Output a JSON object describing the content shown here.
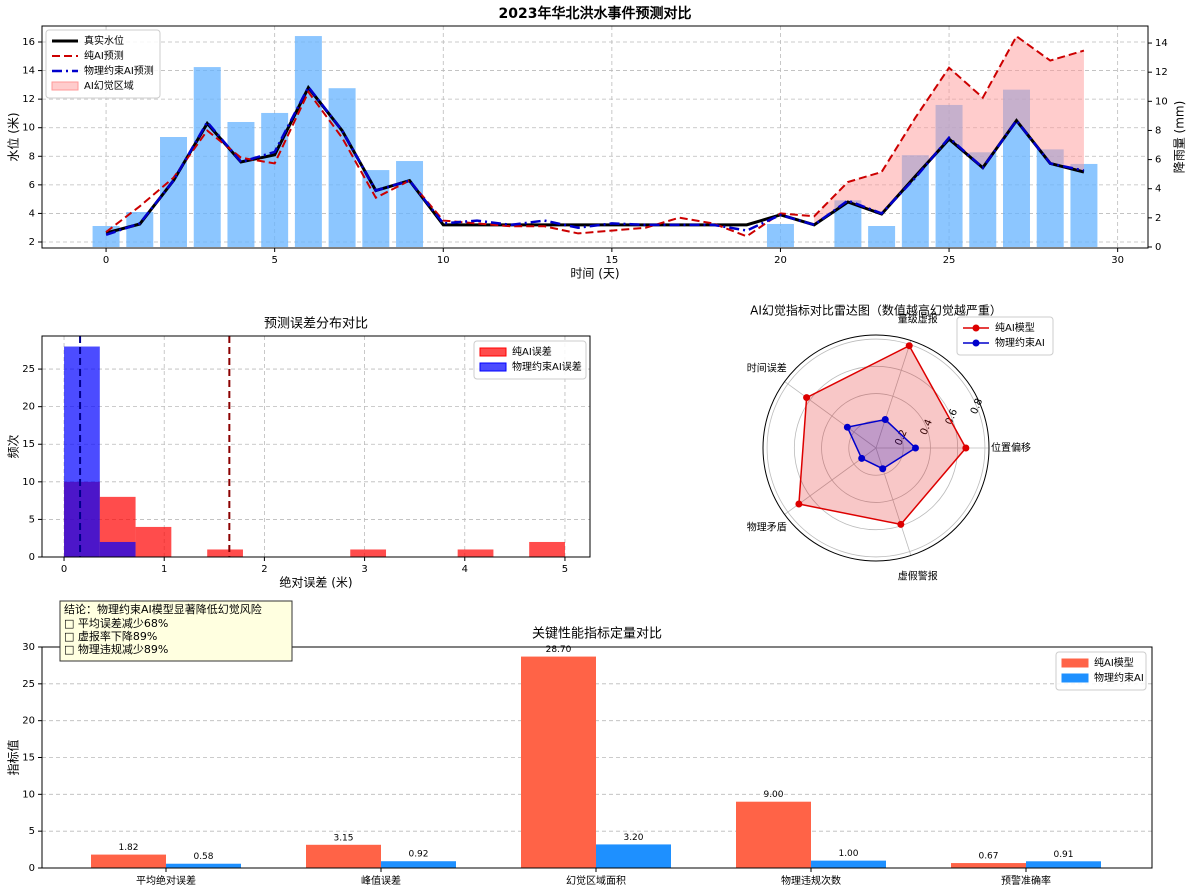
{
  "chart_data": [
    {
      "type": "combo",
      "title": "2023年华北洪水事件预测对比",
      "xlabel": "时间 (天)",
      "ylabel": "水位 (米)",
      "y2label": "降雨量 (mm)",
      "x": [
        0,
        1,
        2,
        3,
        4,
        5,
        6,
        7,
        8,
        9,
        10,
        11,
        12,
        13,
        14,
        15,
        16,
        17,
        18,
        19,
        20,
        21,
        22,
        23,
        24,
        25,
        26,
        27,
        28,
        29
      ],
      "series": [
        {
          "type": "bar",
          "axis": "y2",
          "color": "#66b3ff",
          "values": [
            1.44,
            2.4,
            7.55,
            12.35,
            8.58,
            9.2,
            14.48,
            10.9,
            5.28,
            5.9,
            0,
            0,
            0,
            0,
            0,
            0,
            0,
            0,
            0,
            0,
            1.58,
            0,
            3.2,
            1.44,
            6.3,
            9.75,
            6.5,
            10.8,
            6.7,
            5.7
          ]
        },
        {
          "type": "line",
          "name": "真实水位",
          "color": "#000000",
          "dash": "solid",
          "width": 3,
          "values": [
            2.63,
            3.26,
            6.3,
            10.3,
            7.6,
            8.1,
            12.8,
            9.8,
            5.6,
            6.3,
            3.2,
            3.2,
            3.2,
            3.2,
            3.2,
            3.2,
            3.2,
            3.2,
            3.2,
            3.2,
            3.9,
            3.2,
            4.8,
            3.96,
            6.6,
            9.2,
            7.2,
            10.5,
            7.5,
            6.9
          ]
        },
        {
          "type": "line",
          "name": "纯AI预测",
          "color": "#cc0000",
          "dash": "dashed",
          "width": 2,
          "values": [
            2.7,
            4.5,
            6.5,
            9.8,
            7.9,
            7.5,
            12.5,
            9.3,
            5.1,
            6.3,
            3.5,
            3.3,
            3.1,
            3.1,
            2.6,
            2.8,
            3.0,
            3.7,
            3.3,
            2.4,
            4.0,
            3.8,
            6.2,
            6.9,
            10.7,
            14.2,
            12.1,
            16.4,
            14.7,
            15.4
          ]
        },
        {
          "type": "line",
          "name": "物理约束AI预测",
          "color": "#0000cc",
          "dash": "dashdot",
          "width": 2.5,
          "values": [
            2.5,
            3.3,
            6.3,
            10.4,
            7.6,
            8.3,
            12.85,
            9.8,
            5.6,
            6.3,
            3.3,
            3.5,
            3.2,
            3.5,
            3.0,
            3.3,
            3.2,
            3.2,
            3.2,
            2.8,
            3.9,
            3.2,
            4.9,
            4.0,
            6.5,
            9.3,
            7.2,
            10.5,
            7.5,
            7.0
          ]
        }
      ],
      "fill": {
        "name": "AI幻觉区域",
        "color": "#ff9999",
        "from": 21,
        "to": 29
      },
      "xlim": [
        -1.9,
        30.9
      ],
      "xticks": [
        0,
        5,
        10,
        15,
        20,
        25,
        30
      ],
      "ylim": [
        1.58,
        17.12
      ],
      "yticks": [
        2,
        4,
        6,
        8,
        10,
        12,
        14,
        16
      ],
      "y2lim": [
        -0.07,
        15.17
      ],
      "y2ticks": [
        0,
        2,
        4,
        6,
        8,
        10,
        12,
        14
      ],
      "grid": true,
      "legend": "upper left"
    },
    {
      "type": "histogram",
      "title": "预测误差分布对比",
      "xlabel": "绝对误差 (米)",
      "ylabel": "频次",
      "series": [
        {
          "name": "纯AI误差",
          "color": "#ff0000",
          "bins": [
            0,
            0.357,
            0.714,
            1.071,
            1.429,
            1.786,
            2.143,
            2.5,
            2.857,
            3.214,
            3.571,
            3.929,
            4.286,
            4.643,
            5.0
          ],
          "counts": [
            10,
            8,
            4,
            0,
            1,
            0,
            0,
            0,
            1,
            0,
            0,
            1,
            0,
            2
          ]
        },
        {
          "name": "物理约束AI误差",
          "color": "#0000ff",
          "bins": [
            0,
            0.357,
            0.714
          ],
          "counts": [
            28,
            2
          ]
        }
      ],
      "vlines": [
        {
          "value": 1.65,
          "color": "#8b0000"
        },
        {
          "value": 0.16,
          "color": "#00008b"
        }
      ],
      "xlim": [
        -0.22,
        5.25
      ],
      "xticks": [
        0,
        1,
        2,
        3,
        4,
        5
      ],
      "ylim": [
        0,
        29.4
      ],
      "yticks": [
        0,
        5,
        10,
        15,
        20,
        25
      ],
      "grid": true,
      "legend": "upper right"
    },
    {
      "type": "radar",
      "title": "AI幻觉指标对比雷达图（数值越高幻觉越严重）",
      "categories": [
        "位置偏移",
        "量级虚报",
        "时间误差",
        "物理矛盾",
        "虚假警报"
      ],
      "series": [
        {
          "name": "纯AI模型",
          "color": "#dd0000",
          "values": [
            0.66,
            0.79,
            0.63,
            0.7,
            0.59
          ]
        },
        {
          "name": "物理约束AI",
          "color": "#0000cc",
          "values": [
            0.29,
            0.22,
            0.26,
            0.13,
            0.16
          ]
        }
      ],
      "rlim": [
        0,
        0.83
      ],
      "rticks": [
        0.2,
        0.4,
        0.6,
        0.8
      ],
      "legend": "upper right"
    },
    {
      "type": "grouped_bar",
      "title": "关键性能指标定量对比",
      "ylabel": "指标值",
      "categories": [
        "平均绝对误差",
        "峰值误差",
        "幻觉区域面积",
        "物理违规次数",
        "预警准确率"
      ],
      "series": [
        {
          "name": "纯AI模型",
          "color": "#ff6347",
          "values": [
            1.82,
            3.15,
            28.7,
            9,
            0.67
          ],
          "value_labels": [
            "1.82",
            "3.15",
            "28.70",
            "9.00",
            "0.67"
          ]
        },
        {
          "name": "物理约束AI",
          "color": "#1e90ff",
          "values": [
            0.58,
            0.92,
            3.2,
            1,
            0.91
          ],
          "value_labels": [
            "0.58",
            "0.92",
            "3.20",
            "1.00",
            "0.91"
          ]
        }
      ],
      "ylim": [
        0,
        30
      ],
      "yticks": [
        0,
        5,
        10,
        15,
        20,
        25,
        30
      ],
      "grid": true,
      "legend": "upper right",
      "annotation": {
        "title": "结论：物理约束AI模型显著降低幻觉风险",
        "items": [
          "□ 平均误差减少68%",
          "□ 虚报率下降89%",
          "□ 物理违规减少89%"
        ]
      }
    }
  ]
}
